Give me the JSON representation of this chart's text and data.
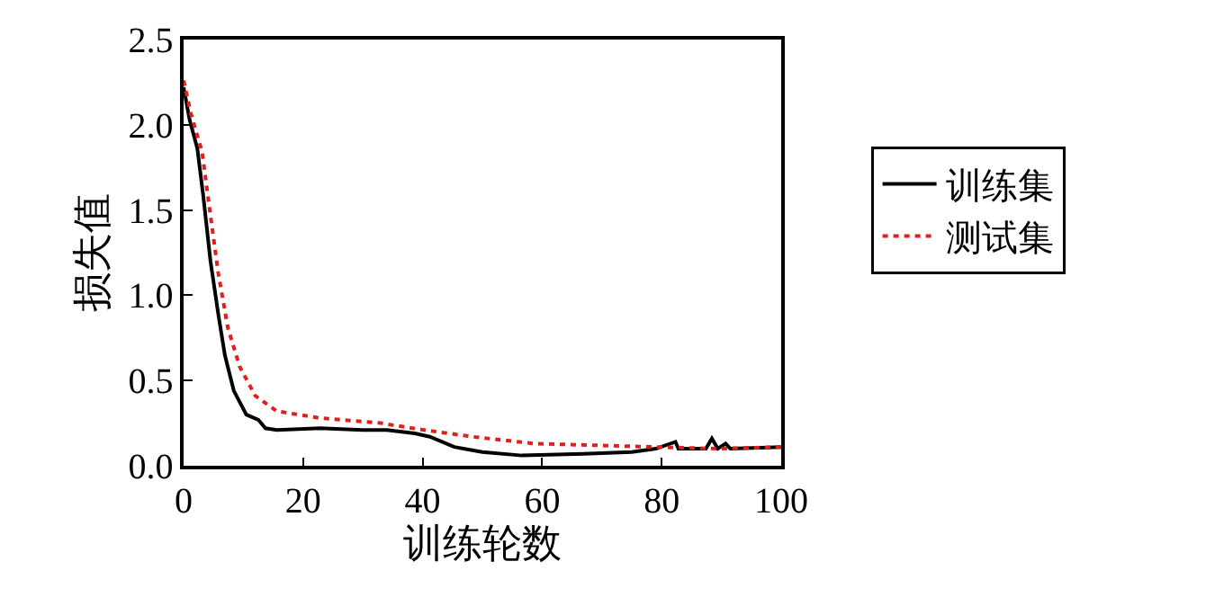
{
  "chart_data": {
    "type": "line",
    "xlabel": "训练轮数",
    "ylabel": "损失值",
    "xlim": [
      0,
      100
    ],
    "ylim": [
      0,
      2.5
    ],
    "xticks": [
      0,
      20,
      40,
      60,
      80,
      100
    ],
    "yticks": [
      {
        "value": 0,
        "label": "0.0"
      },
      0.5,
      {
        "value": 1,
        "label": "1.0"
      },
      1.5,
      {
        "value": 2,
        "label": "2.0"
      },
      2.5
    ],
    "legend": "right",
    "marker": "none",
    "series": [
      {
        "name": "训练集",
        "color": "#000000",
        "line_style": "solid",
        "x": [
          0,
          1,
          2.3,
          3.3,
          4.5,
          5.8,
          6.9,
          8.4,
          10.5,
          12.5,
          13.7,
          15.6,
          22.8,
          30,
          34,
          38.7,
          41.2,
          45.3,
          50,
          56.6,
          66.9,
          75,
          79,
          82.3,
          82.8,
          87.4,
          88.4,
          89.4,
          90.7,
          91.5,
          100
        ],
        "values": [
          2.22,
          2.03,
          1.86,
          1.58,
          1.2,
          0.89,
          0.65,
          0.44,
          0.3,
          0.27,
          0.22,
          0.21,
          0.22,
          0.21,
          0.21,
          0.19,
          0.17,
          0.11,
          0.08,
          0.06,
          0.07,
          0.08,
          0.1,
          0.14,
          0.1,
          0.1,
          0.16,
          0.1,
          0.13,
          0.1,
          0.11
        ]
      },
      {
        "name": "测试集",
        "color": "#e0201b",
        "line_style": "dotted",
        "x": [
          0,
          1.2,
          3.1,
          4.3,
          5.8,
          7.4,
          9.4,
          12,
          15.6,
          22.8,
          33,
          40.2,
          48.4,
          58.7,
          69,
          79,
          89.4,
          100
        ],
        "values": [
          2.26,
          2.07,
          1.84,
          1.52,
          1.13,
          0.81,
          0.58,
          0.41,
          0.32,
          0.28,
          0.25,
          0.21,
          0.17,
          0.13,
          0.12,
          0.11,
          0.1,
          0.11
        ]
      }
    ]
  }
}
